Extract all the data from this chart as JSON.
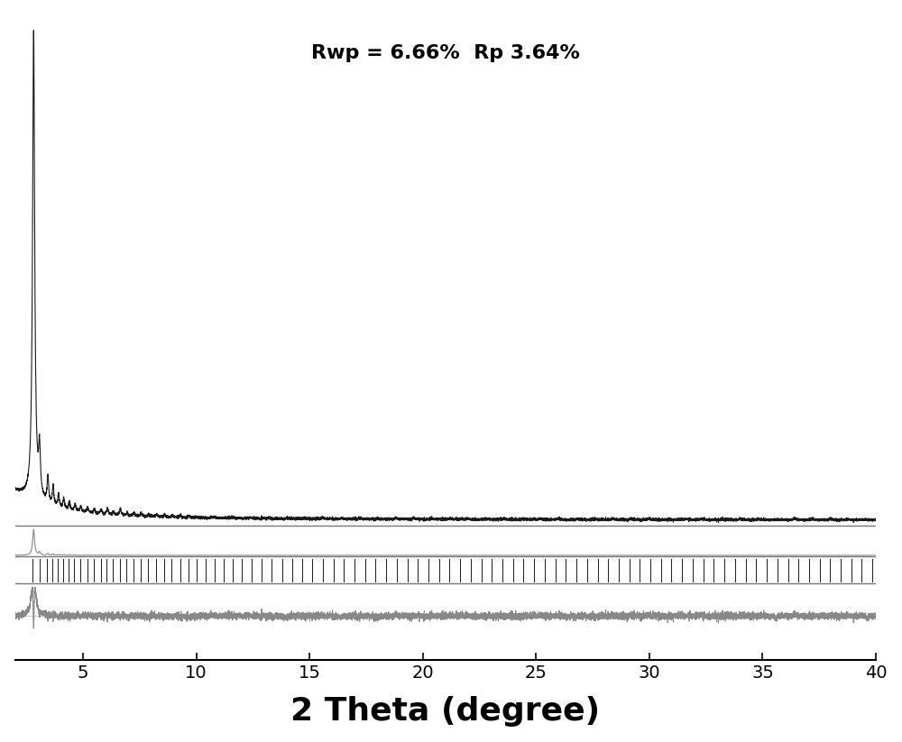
{
  "title": "Rwp = 6.66%  Rp 3.64%",
  "title_fontsize": 16,
  "title_fontweight": "bold",
  "xlabel": "2 Theta (degree)",
  "xlabel_fontsize": 26,
  "xlabel_fontweight": "bold",
  "xlim": [
    2.0,
    40.0
  ],
  "background_color": "#ffffff",
  "experimental_color": "#1a1a1a",
  "calculated_color": "#888888",
  "difference_color": "#888888",
  "tick_color": "#222222",
  "bragg_tick_positions": [
    2.78,
    3.08,
    3.42,
    3.65,
    3.88,
    4.12,
    4.38,
    4.62,
    4.88,
    5.18,
    5.48,
    5.78,
    6.05,
    6.32,
    6.62,
    6.92,
    7.22,
    7.55,
    7.88,
    8.22,
    8.58,
    8.92,
    9.28,
    9.65,
    10.02,
    10.42,
    10.82,
    11.22,
    11.62,
    12.02,
    12.45,
    12.88,
    13.32,
    13.78,
    14.22,
    14.68,
    15.12,
    15.58,
    16.05,
    16.52,
    16.98,
    17.45,
    17.92,
    18.38,
    18.85,
    19.32,
    19.78,
    20.25,
    20.72,
    21.18,
    21.65,
    22.12,
    22.58,
    23.05,
    23.52,
    23.98,
    24.45,
    24.92,
    25.38,
    25.85,
    26.32,
    26.78,
    27.25,
    27.72,
    28.18,
    28.65,
    29.12,
    29.58,
    30.05,
    30.52,
    30.98,
    31.45,
    31.92,
    32.38,
    32.85,
    33.32,
    33.78,
    34.25,
    34.72,
    35.18,
    35.65,
    36.12,
    36.58,
    37.05,
    37.52,
    37.98,
    38.45,
    38.92,
    39.38,
    39.85
  ],
  "xticks": [
    5,
    10,
    15,
    20,
    25,
    30,
    35,
    40
  ],
  "xtick_labels": [
    "5",
    "10",
    "15",
    "20",
    "25",
    "30",
    "35",
    "40"
  ]
}
